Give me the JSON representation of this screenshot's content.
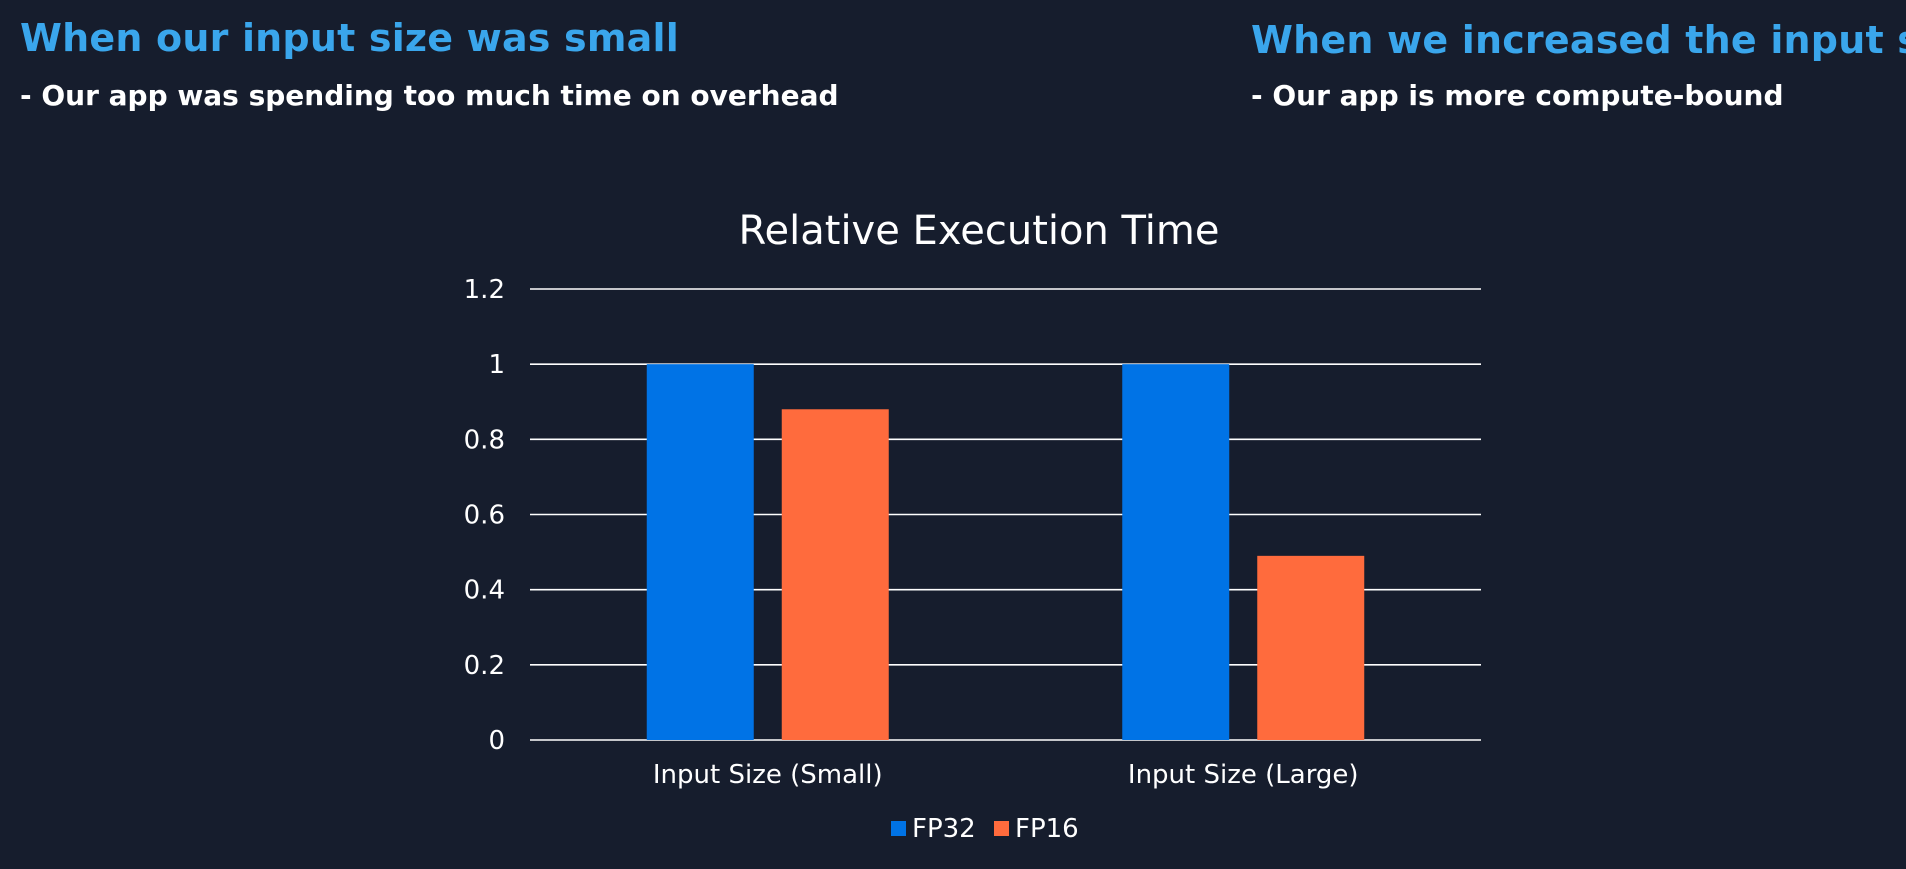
{
  "header": {
    "left_title": "When our input size was small",
    "left_subtitle": "- Our app was spending too much time on overhead",
    "right_title": "When we increased the input size",
    "right_subtitle": "- Our app is more compute-bound"
  },
  "chart_data": {
    "type": "bar",
    "title": "Relative Execution Time",
    "xlabel": "",
    "ylabel": "",
    "categories": [
      "Input Size (Small)",
      "Input Size (Large)"
    ],
    "series": [
      {
        "name": "FP32",
        "values": [
          1.0,
          1.0
        ],
        "color": "#0073e6"
      },
      {
        "name": "FP16",
        "values": [
          0.88,
          0.49
        ],
        "color": "#ff6b3d"
      }
    ],
    "ylim": [
      0,
      1.2
    ],
    "yticks": [
      "0",
      "0.2",
      "0.4",
      "0.6",
      "0.8",
      "1",
      "1.2"
    ],
    "grid": true,
    "legend_position": "bottom"
  }
}
